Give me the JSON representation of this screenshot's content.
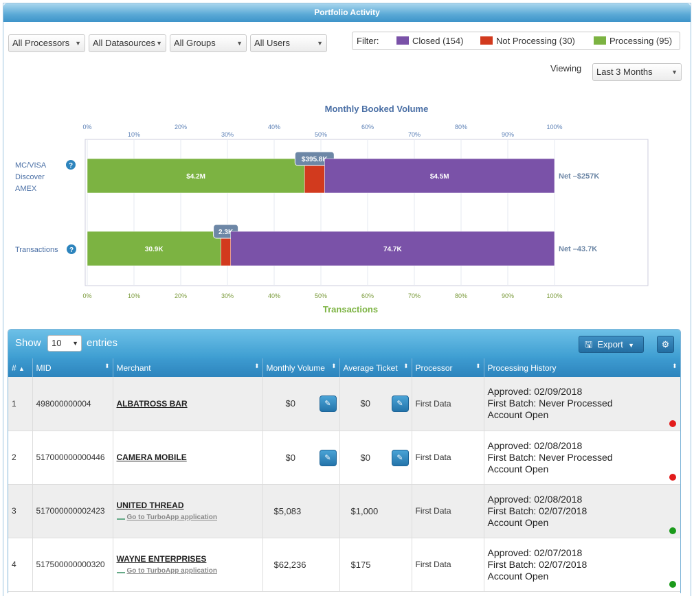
{
  "panel": {
    "title": "Portfolio Activity"
  },
  "filters": {
    "processors": "All Processors",
    "datasources": "All Datasources",
    "groups": "All Groups",
    "users": "All Users"
  },
  "legend": {
    "label": "Filter:",
    "items": [
      {
        "text": "Closed (154)",
        "color": "#7a52a8"
      },
      {
        "text": "Not Processing (30)",
        "color": "#d23a1e"
      },
      {
        "text": "Processing (95)",
        "color": "#7cb342"
      }
    ]
  },
  "viewing": {
    "label": "Viewing",
    "value": "Last 3 Months"
  },
  "chart_data": {
    "type": "bar",
    "orientation": "horizontal-stacked-percent",
    "title": "Monthly Booked Volume",
    "xlabel": "Transactions",
    "xlim": [
      0,
      100
    ],
    "ticks": [
      "0%",
      "10%",
      "20%",
      "30%",
      "40%",
      "50%",
      "60%",
      "70%",
      "80%",
      "90%",
      "100%"
    ],
    "categories": [
      "MC/VISA\nDiscover\nAMEX",
      "Transactions"
    ],
    "category_lines": [
      [
        "MC/VISA",
        "Discover",
        "AMEX"
      ],
      [
        "Transactions"
      ]
    ],
    "series": [
      {
        "name": "Processing",
        "color": "#7cb342",
        "values": [
          46.5,
          28.6
        ],
        "labels": [
          "$4.2M",
          "30.9K"
        ]
      },
      {
        "name": "Not Processing",
        "color": "#d23a1e",
        "values": [
          4.3,
          2.1
        ],
        "labels": [
          "$395.8K",
          "2.3K"
        ]
      },
      {
        "name": "Closed",
        "color": "#7a52a8",
        "values": [
          49.2,
          69.3
        ],
        "labels": [
          "$4.5M",
          "74.7K"
        ]
      }
    ],
    "net_labels": [
      "Net –$257K",
      "Net –43.7K"
    ],
    "grid": true
  },
  "table": {
    "show_label": "Show",
    "page_length": "10",
    "entries_label": "entries",
    "export_label": "Export",
    "columns": [
      "#",
      "MID",
      "Merchant",
      "Monthly Volume",
      "Average Ticket",
      "Processor",
      "Processing History"
    ],
    "rows": [
      {
        "n": "1",
        "mid": "498000000004",
        "merchant": "ALBATROSS BAR",
        "turbo": "",
        "volume": "$0",
        "ticket": "$0",
        "processor": "First Data",
        "approved": "Approved: 02/09/2018",
        "batch": "First Batch: Never Processed",
        "status": "Account Open",
        "dot": "#e21b1b",
        "editable": true
      },
      {
        "n": "2",
        "mid": "517000000000446",
        "merchant": "CAMERA MOBILE",
        "turbo": "",
        "volume": "$0",
        "ticket": "$0",
        "processor": "First Data",
        "approved": "Approved: 02/08/2018",
        "batch": "First Batch: Never Processed",
        "status": "Account Open",
        "dot": "#e21b1b",
        "editable": true
      },
      {
        "n": "3",
        "mid": "517000000002423",
        "merchant": "UNITED THREAD",
        "turbo": "Go to TurboApp application",
        "volume": "$5,083",
        "ticket": "$1,000",
        "processor": "First Data",
        "approved": "Approved: 02/08/2018",
        "batch": "First Batch: 02/07/2018",
        "status": "Account Open",
        "dot": "#1a9a1a",
        "editable": false
      },
      {
        "n": "4",
        "mid": "517500000000320",
        "merchant": "WAYNE ENTERPRISES",
        "turbo": "Go to TurboApp application",
        "volume": "$62,236",
        "ticket": "$175",
        "processor": "First Data",
        "approved": "Approved: 02/07/2018",
        "batch": "First Batch: 02/07/2018",
        "status": "Account Open",
        "dot": "#1a9a1a",
        "editable": false
      }
    ]
  }
}
